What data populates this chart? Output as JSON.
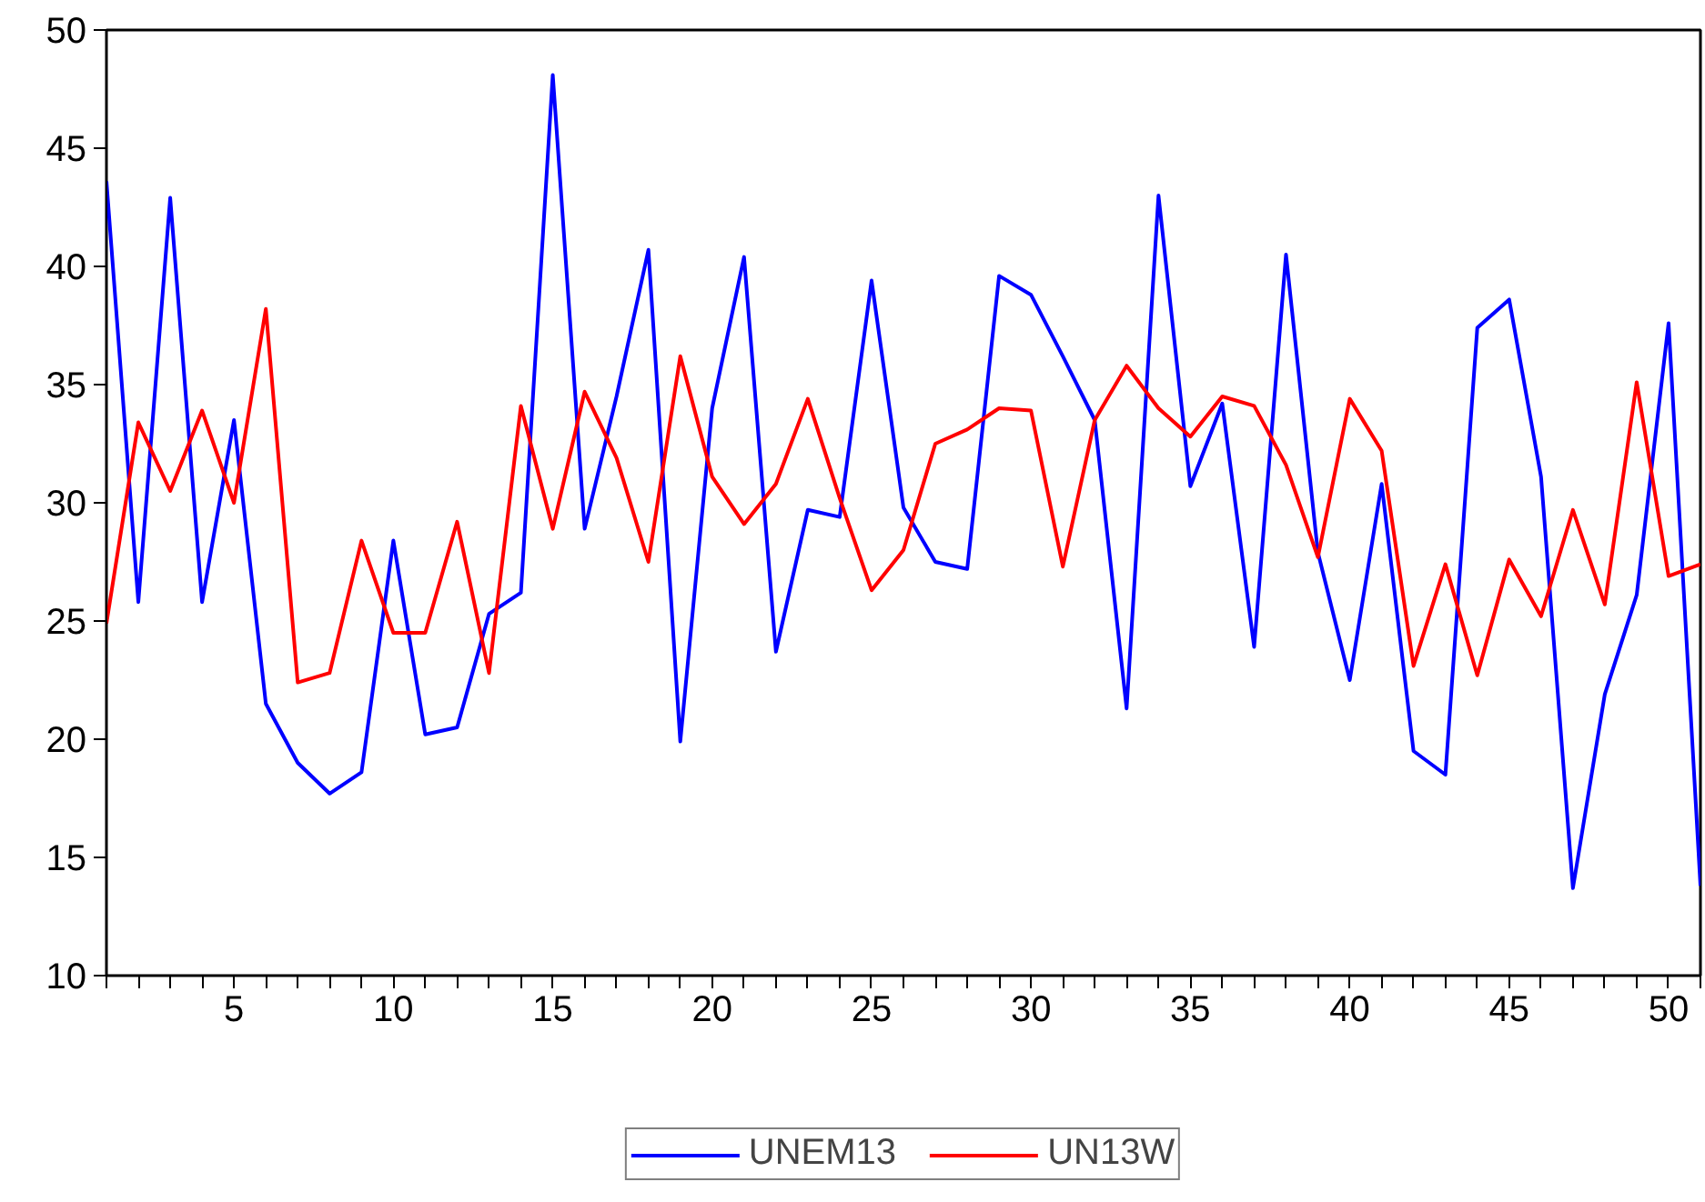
{
  "chart_data": {
    "type": "line",
    "x": [
      1,
      2,
      3,
      4,
      5,
      6,
      7,
      8,
      9,
      10,
      11,
      12,
      13,
      14,
      15,
      16,
      17,
      18,
      19,
      20,
      21,
      22,
      23,
      24,
      25,
      26,
      27,
      28,
      29,
      30,
      31,
      32,
      33,
      34,
      35,
      36,
      37,
      38,
      39,
      40,
      41,
      42,
      43,
      44,
      45,
      46,
      47,
      48,
      49,
      50,
      51
    ],
    "series": [
      {
        "name": "UNEM13",
        "color": "#0000ff",
        "values": [
          43.6,
          25.8,
          42.9,
          25.8,
          33.5,
          21.5,
          19.0,
          17.7,
          18.6,
          28.4,
          20.2,
          20.5,
          25.3,
          26.2,
          48.1,
          28.9,
          34.5,
          40.7,
          19.9,
          34.0,
          40.4,
          23.7,
          29.7,
          29.4,
          39.4,
          29.8,
          27.5,
          27.2,
          39.6,
          38.8,
          36.2,
          33.5,
          21.3,
          43.0,
          30.7,
          34.2,
          23.9,
          40.5,
          27.9,
          22.5,
          30.8,
          19.5,
          18.5,
          37.4,
          38.6,
          31.1,
          13.7,
          21.9,
          26.1,
          37.6,
          13.8
        ]
      },
      {
        "name": "UN13W",
        "color": "#ff0000",
        "values": [
          24.9,
          33.4,
          30.5,
          33.9,
          30.0,
          38.2,
          22.4,
          22.8,
          28.4,
          24.5,
          24.5,
          29.2,
          22.8,
          34.1,
          28.9,
          34.7,
          31.9,
          27.5,
          36.2,
          31.1,
          29.1,
          30.8,
          34.4,
          30.2,
          26.3,
          28.0,
          32.5,
          33.1,
          34.0,
          33.9,
          27.3,
          33.5,
          35.8,
          34.0,
          32.8,
          34.5,
          34.1,
          31.6,
          27.7,
          34.4,
          32.2,
          23.1,
          27.4,
          22.7,
          27.6,
          25.2,
          29.7,
          25.7,
          35.1,
          26.9,
          27.4
        ]
      }
    ],
    "xlim": [
      1,
      51
    ],
    "xticks": [
      {
        "value": 1,
        "label": null
      },
      {
        "value": 2,
        "label": null
      },
      {
        "value": 3,
        "label": null
      },
      {
        "value": 4,
        "label": null
      },
      5,
      {
        "value": 6,
        "label": null
      },
      {
        "value": 7,
        "label": null
      },
      {
        "value": 8,
        "label": null
      },
      {
        "value": 9,
        "label": null
      },
      10,
      {
        "value": 11,
        "label": null
      },
      {
        "value": 12,
        "label": null
      },
      {
        "value": 13,
        "label": null
      },
      {
        "value": 14,
        "label": null
      },
      15,
      {
        "value": 16,
        "label": null
      },
      {
        "value": 17,
        "label": null
      },
      {
        "value": 18,
        "label": null
      },
      {
        "value": 19,
        "label": null
      },
      20,
      {
        "value": 21,
        "label": null
      },
      {
        "value": 22,
        "label": null
      },
      {
        "value": 23,
        "label": null
      },
      {
        "value": 24,
        "label": null
      },
      25,
      {
        "value": 26,
        "label": null
      },
      {
        "value": 27,
        "label": null
      },
      {
        "value": 28,
        "label": null
      },
      {
        "value": 29,
        "label": null
      },
      30,
      {
        "value": 31,
        "label": null
      },
      {
        "value": 32,
        "label": null
      },
      {
        "value": 33,
        "label": null
      },
      {
        "value": 34,
        "label": null
      },
      35,
      {
        "value": 36,
        "label": null
      },
      {
        "value": 37,
        "label": null
      },
      {
        "value": 38,
        "label": null
      },
      {
        "value": 39,
        "label": null
      },
      40,
      {
        "value": 41,
        "label": null
      },
      {
        "value": 42,
        "label": null
      },
      {
        "value": 43,
        "label": null
      },
      {
        "value": 44,
        "label": null
      },
      45,
      {
        "value": 46,
        "label": null
      },
      {
        "value": 47,
        "label": null
      },
      {
        "value": 48,
        "label": null
      },
      {
        "value": 49,
        "label": null
      },
      50,
      {
        "value": 51,
        "label": null
      }
    ],
    "ylim": [
      10,
      50
    ],
    "yticks": [
      10,
      15,
      20,
      25,
      30,
      35,
      40,
      45,
      50
    ],
    "grid": false,
    "legend": "bottom",
    "marker": "none",
    "line_style": "solid"
  }
}
